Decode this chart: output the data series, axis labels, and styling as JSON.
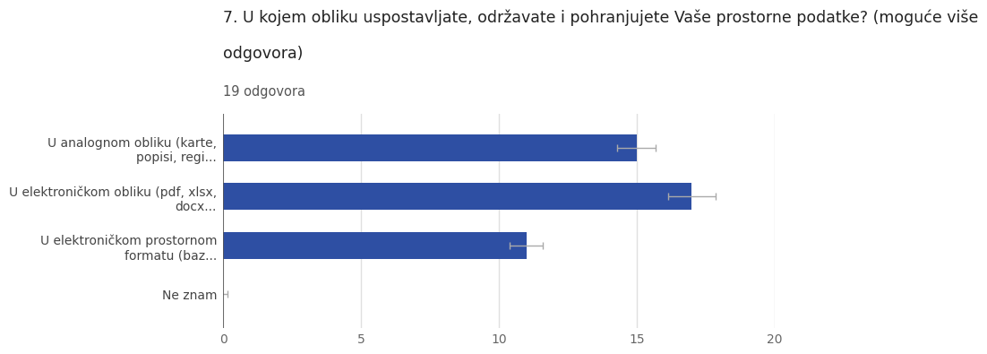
{
  "title_line1": "7. U kojem obliku uspostavljate, održavate i pohranjujete Vaše prostorne podatke? (moguće više",
  "title_line2": "odgovora)",
  "subtitle": "19 odgovora",
  "categories": [
    "U analognom obliku (karte,\npopisi, regi...",
    "U elektroničkom obliku (pdf, xlsx,\ndocx...",
    "U elektroničkom prostornom\nformatu (baz...",
    "Ne znam"
  ],
  "values": [
    15,
    17,
    11,
    0
  ],
  "xerr": [
    0.7,
    0.85,
    0.6,
    0.15
  ],
  "bar_color": "#2e4fa3",
  "xerr_color": "#aaaaaa",
  "xlim": [
    0,
    20
  ],
  "xticks": [
    0,
    5,
    10,
    15,
    20
  ],
  "background_color": "#ffffff",
  "grid_color": "#e0e0e0",
  "title_fontsize": 12.5,
  "subtitle_fontsize": 10.5,
  "label_fontsize": 10,
  "tick_fontsize": 10
}
